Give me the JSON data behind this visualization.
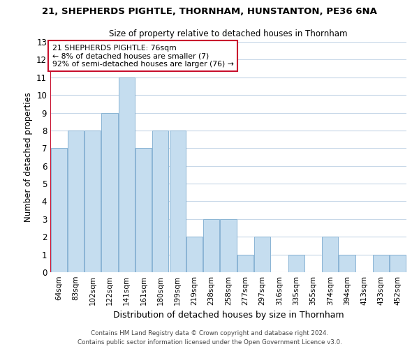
{
  "title_line1": "21, SHEPHERDS PIGHTLE, THORNHAM, HUNSTANTON, PE36 6NA",
  "title_line2": "Size of property relative to detached houses in Thornham",
  "xlabel": "Distribution of detached houses by size in Thornham",
  "ylabel": "Number of detached properties",
  "bar_labels": [
    "64sqm",
    "83sqm",
    "102sqm",
    "122sqm",
    "141sqm",
    "161sqm",
    "180sqm",
    "199sqm",
    "219sqm",
    "238sqm",
    "258sqm",
    "277sqm",
    "297sqm",
    "316sqm",
    "335sqm",
    "355sqm",
    "374sqm",
    "394sqm",
    "413sqm",
    "433sqm",
    "452sqm"
  ],
  "bar_values": [
    7,
    8,
    8,
    9,
    11,
    7,
    8,
    8,
    2,
    3,
    3,
    1,
    2,
    0,
    1,
    0,
    2,
    1,
    0,
    1,
    1
  ],
  "bar_color": "#c5ddef",
  "bar_edge_color": "#8ab4d4",
  "highlight_color": "#c8102e",
  "annotation_title": "21 SHEPHERDS PIGHTLE: 76sqm",
  "annotation_line1": "← 8% of detached houses are smaller (7)",
  "annotation_line2": "92% of semi-detached houses are larger (76) →",
  "annotation_box_color": "#ffffff",
  "annotation_box_edge": "#c8102e",
  "property_line_x": -0.5,
  "ylim": [
    0,
    13
  ],
  "yticks": [
    0,
    1,
    2,
    3,
    4,
    5,
    6,
    7,
    8,
    9,
    10,
    11,
    12,
    13
  ],
  "footer_line1": "Contains HM Land Registry data © Crown copyright and database right 2024.",
  "footer_line2": "Contains public sector information licensed under the Open Government Licence v3.0.",
  "background_color": "#ffffff",
  "grid_color": "#c8d8e8"
}
